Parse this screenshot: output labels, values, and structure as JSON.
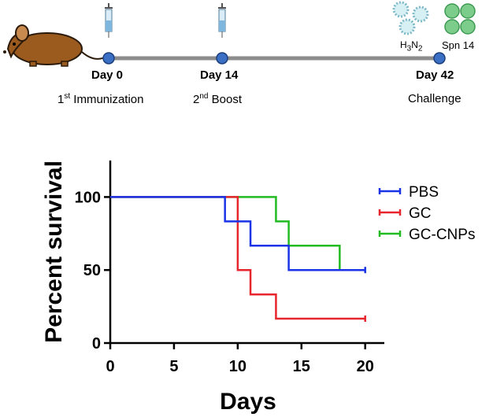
{
  "timeline": {
    "events": [
      {
        "day": "Day 0",
        "pre": "1",
        "sup": "st",
        "post": " Immunization"
      },
      {
        "day": "Day 14",
        "pre": "2",
        "sup": "nd",
        "post": " Boost"
      },
      {
        "day": "Day 42",
        "pre": "",
        "sup": "",
        "post": "Challenge"
      }
    ],
    "pathogen_1": {
      "base": "H",
      "sub1": "3",
      "mid": "N",
      "sub2": "2"
    },
    "pathogen_2": "Spn 14"
  },
  "colors": {
    "PBS": "#1a33e6",
    "GC": "#e6262c",
    "GC-CNPs": "#22bb22",
    "timeline_line": "#8c8c8c",
    "timeline_dot": "#3a6fc4"
  },
  "chart_data": {
    "type": "line",
    "subtype": "kaplan-meier-step",
    "xlabel": "Days",
    "ylabel": "Percent survival",
    "xlim": [
      0,
      21.5
    ],
    "ylim": [
      0,
      125
    ],
    "xticks": [
      0,
      5,
      10,
      15,
      20
    ],
    "yticks": [
      0,
      50,
      100
    ],
    "legend_position": "top-right",
    "series": [
      {
        "name": "PBS",
        "points": [
          [
            0,
            100
          ],
          [
            9,
            100
          ],
          [
            9,
            83.3
          ],
          [
            11,
            83.3
          ],
          [
            11,
            66.7
          ],
          [
            14,
            66.7
          ],
          [
            14,
            50
          ],
          [
            20,
            50
          ]
        ],
        "end_tick": true
      },
      {
        "name": "GC",
        "points": [
          [
            0,
            100
          ],
          [
            10,
            100
          ],
          [
            10,
            50
          ],
          [
            11,
            50
          ],
          [
            11,
            33.3
          ],
          [
            13,
            33.3
          ],
          [
            13,
            16.7
          ],
          [
            20,
            16.7
          ]
        ],
        "end_tick": true
      },
      {
        "name": "GC-CNPs",
        "points": [
          [
            0,
            100
          ],
          [
            13,
            100
          ],
          [
            13,
            83.3
          ],
          [
            14,
            83.3
          ],
          [
            14,
            66.7
          ],
          [
            18,
            66.7
          ],
          [
            18,
            50
          ]
        ],
        "end_tick": false
      }
    ]
  }
}
